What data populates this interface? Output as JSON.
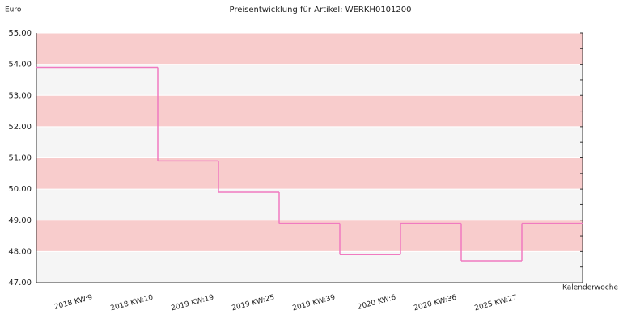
{
  "chart_data": {
    "type": "step-line",
    "title": "Preisentwicklung für Artikel: WERKH0101200",
    "y_label": "Euro",
    "x_label": "Kalenderwoche",
    "categories": [
      "2018 KW:9",
      "2018 KW:10",
      "2019 KW:19",
      "2019 KW:25",
      "2019 KW:39",
      "2020 KW:6",
      "2020 KW:36",
      "2025 KW:27"
    ],
    "values": [
      53.9,
      50.9,
      49.9,
      48.9,
      47.9,
      48.9,
      47.7,
      48.9
    ],
    "color": "#f07ac0",
    "ylim": [
      47,
      55
    ],
    "yticks": [
      {
        "value": 47,
        "label": "47.00"
      },
      {
        "value": 48,
        "label": "48.00"
      },
      {
        "value": 49,
        "label": "49.00"
      },
      {
        "value": 50,
        "label": "50.00"
      },
      {
        "value": 51,
        "label": "51.00"
      },
      {
        "value": 52,
        "label": "52.00"
      },
      {
        "value": 53,
        "label": "53.00"
      },
      {
        "value": 54,
        "label": "54.00"
      },
      {
        "value": 55,
        "label": "55.00"
      }
    ]
  }
}
